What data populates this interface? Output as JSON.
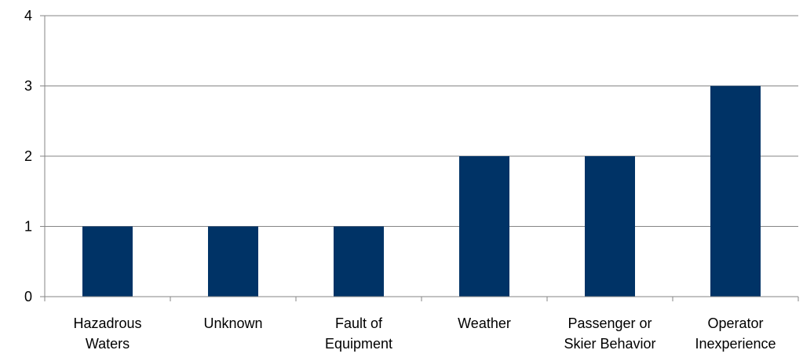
{
  "chart_data": {
    "type": "bar",
    "categories": [
      [
        "Hazadrous",
        "Waters"
      ],
      [
        "Unknown"
      ],
      [
        "Fault of",
        "Equipment"
      ],
      [
        "Weather"
      ],
      [
        "Passenger or",
        "Skier Behavior"
      ],
      [
        "Operator",
        "Inexperience"
      ]
    ],
    "values": [
      1,
      1,
      1,
      2,
      2,
      3
    ],
    "ylim": [
      0,
      4
    ],
    "yticks": [
      0,
      1,
      2,
      3,
      4
    ],
    "grid": true,
    "bar_color": "#003366",
    "title": "",
    "xlabel": "",
    "ylabel": ""
  }
}
